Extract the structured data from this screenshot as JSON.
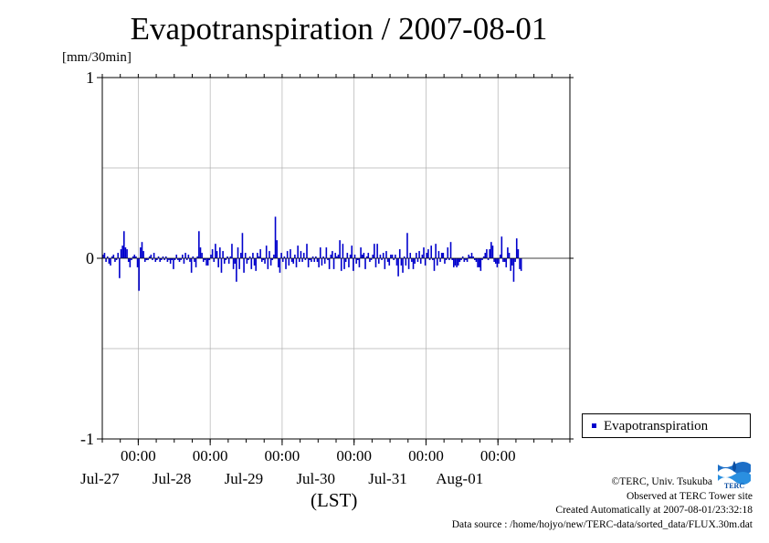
{
  "title": "Evapotranspiration / 2007-08-01",
  "unit_label": "[mm/30min]",
  "xlabel": "(LST)",
  "legend": {
    "label": "Evapotranspiration",
    "color": "#0000cc"
  },
  "credits": {
    "copyright": "©TERC, Univ. Tsukuba",
    "observed": "Observed at TERC Tower site",
    "created": "Created Automatically at 2007-08-01/23:32:18",
    "source": "Data source : /home/hojyo/new/TERC-data/sorted_data/FLUX.30m.dat"
  },
  "logo_text": "TERC",
  "chart_data": {
    "type": "bar",
    "title": "Evapotranspiration / 2007-08-01",
    "ylabel": "[mm/30min]",
    "xlabel": "(LST)",
    "ylim": [
      -1,
      1
    ],
    "yticks": [
      {
        "value": -1,
        "label": "-1"
      },
      {
        "value": 0,
        "label": "0"
      },
      {
        "value": 1,
        "label": "1"
      }
    ],
    "xlim": [
      "2007-07-26 12:00",
      "2007-08-01 24:00"
    ],
    "xticks": [
      {
        "time": "2007-07-27 00:00",
        "time_label": "00:00",
        "date_label": "Jul-27"
      },
      {
        "time": "2007-07-28 00:00",
        "time_label": "00:00",
        "date_label": "Jul-28"
      },
      {
        "time": "2007-07-29 00:00",
        "time_label": "00:00",
        "date_label": "Jul-29"
      },
      {
        "time": "2007-07-30 00:00",
        "time_label": "00:00",
        "date_label": "Jul-30"
      },
      {
        "time": "2007-07-31 00:00",
        "time_label": "00:00",
        "date_label": "Jul-31"
      },
      {
        "time": "2007-08-01 00:00",
        "time_label": "00:00",
        "date_label": "Aug-01"
      }
    ],
    "grid": true,
    "legend_position": "bottom-right",
    "series": [
      {
        "name": "Evapotranspiration",
        "color": "#0000cc",
        "interval_minutes": 30,
        "start": "2007-07-26 12:00",
        "values": [
          0.02,
          0.03,
          -0.02,
          0.01,
          -0.03,
          -0.04,
          0.01,
          0.02,
          -0.02,
          -0.01,
          0.03,
          -0.11,
          0.05,
          0.07,
          0.15,
          0.06,
          0.05,
          -0.02,
          -0.05,
          -0.01,
          0.01,
          0.02,
          0.01,
          -0.05,
          -0.18,
          0.06,
          0.09,
          0.04,
          -0.02,
          -0.01,
          -0.01,
          0.01,
          0.02,
          -0.01,
          0.03,
          -0.02,
          -0.01,
          0.01,
          -0.02,
          -0.01,
          0.01,
          -0.01,
          0.01,
          -0.02,
          -0.01,
          -0.03,
          -0.01,
          -0.06,
          -0.01,
          0.02,
          -0.01,
          -0.02,
          -0.01,
          0.02,
          -0.03,
          0.03,
          -0.01,
          0.02,
          -0.02,
          -0.08,
          0.01,
          -0.02,
          -0.05,
          0.01,
          0.15,
          0.06,
          0.03,
          -0.02,
          -0.01,
          -0.04,
          -0.04,
          -0.01,
          0.02,
          0.05,
          -0.02,
          0.08,
          0.04,
          -0.05,
          0.06,
          -0.08,
          0.04,
          -0.03,
          -0.01,
          0.01,
          -0.03,
          0.01,
          0.08,
          -0.06,
          -0.03,
          -0.13,
          0.06,
          -0.06,
          0.03,
          0.14,
          -0.08,
          0.03,
          -0.03,
          -0.01,
          0.01,
          -0.06,
          0.03,
          -0.04,
          -0.07,
          0.03,
          0.01,
          0.05,
          -0.02,
          -0.01,
          -0.03,
          0.07,
          -0.06,
          0.04,
          -0.04,
          -0.01,
          0.02,
          0.23,
          0.1,
          -0.05,
          -0.08,
          0.03,
          -0.02,
          0.01,
          -0.06,
          0.04,
          -0.04,
          0.05,
          -0.02,
          -0.03,
          0.02,
          -0.05,
          0.07,
          -0.02,
          0.04,
          -0.02,
          0.03,
          -0.01,
          0.08,
          -0.05,
          -0.01,
          -0.02,
          0.01,
          -0.02,
          0.01,
          -0.02,
          -0.05,
          0.06,
          -0.04,
          0.01,
          -0.03,
          0.06,
          -0.01,
          -0.06,
          0.02,
          0.04,
          -0.06,
          0.03,
          0.01,
          0.02,
          0.1,
          -0.07,
          0.08,
          -0.06,
          -0.02,
          0.03,
          -0.05,
          0.02,
          0.07,
          -0.07,
          0.02,
          -0.03,
          -0.01,
          -0.05,
          0.06,
          0.02,
          0.03,
          -0.06,
          0.01,
          0.03,
          -0.02,
          -0.01,
          0.02,
          0.08,
          -0.05,
          0.08,
          -0.03,
          0.02,
          -0.01,
          0.03,
          -0.06,
          0.04,
          -0.02,
          -0.04,
          0.02,
          0.02,
          -0.01,
          0.02,
          -0.04,
          -0.1,
          0.05,
          -0.04,
          -0.08,
          0.01,
          -0.04,
          0.14,
          -0.06,
          0.03,
          -0.02,
          -0.06,
          -0.03,
          0.03,
          -0.02,
          0.04,
          -0.03,
          0.02,
          0.06,
          -0.04,
          0.03,
          0.05,
          -0.01,
          0.07,
          -0.01,
          -0.07,
          0.08,
          -0.04,
          0.04,
          -0.02,
          0.03,
          0.03,
          -0.03,
          -0.01,
          0.06,
          -0.01,
          0.09,
          -0.01,
          -0.05,
          -0.04,
          -0.05,
          -0.04,
          -0.02,
          -0.01,
          0.01,
          -0.02,
          -0.01,
          -0.02,
          0.02,
          0.01,
          0.03,
          0.01,
          -0.01,
          -0.02,
          -0.05,
          -0.05,
          -0.07,
          -0.01,
          0.01,
          0.03,
          0.05,
          -0.01,
          0.05,
          0.09,
          0.07,
          -0.02,
          -0.03,
          -0.05,
          -0.03,
          0.02,
          0.12,
          -0.02,
          -0.02,
          -0.05,
          0.06,
          0.03,
          -0.07,
          -0.04,
          -0.13,
          -0.02,
          0.11,
          0.05,
          -0.06,
          -0.07
        ]
      }
    ]
  }
}
